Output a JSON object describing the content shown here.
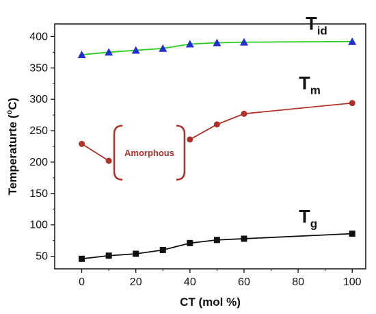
{
  "chart_data": {
    "type": "line",
    "xlabel": "CT (mol %)",
    "ylabel_main": "Temperaturte (",
    "ylabel_sup": "o",
    "ylabel_end": "C)",
    "xlim": [
      -10,
      105
    ],
    "ylim": [
      30,
      420
    ],
    "x_ticks": [
      0,
      20,
      40,
      60,
      80,
      100
    ],
    "y_ticks": [
      50,
      100,
      150,
      200,
      250,
      300,
      350,
      400
    ],
    "grid": false,
    "series": [
      {
        "key": "Tid",
        "label_main": "T",
        "label_sub": "id",
        "color": "#2ecc1f",
        "marker": "triangle",
        "marker_color": "#1f2fd4",
        "x": [
          0,
          10,
          20,
          30,
          40,
          50,
          60,
          100
        ],
        "y": [
          371,
          375,
          378,
          381,
          388,
          390,
          391,
          392
        ]
      },
      {
        "key": "Tm",
        "label_main": "T",
        "label_sub": "m",
        "color": "#b0302a",
        "marker": "circle",
        "marker_color": "#b0302a",
        "segments": [
          {
            "x": [
              0,
              10
            ],
            "y": [
              229,
              202
            ]
          },
          {
            "x": [
              40,
              50,
              60,
              100
            ],
            "y": [
              236,
              260,
              277,
              294
            ]
          }
        ]
      },
      {
        "key": "Tg",
        "label_main": "T",
        "label_sub": "g",
        "color": "#111111",
        "marker": "square",
        "marker_color": "#111111",
        "x": [
          0,
          10,
          20,
          30,
          40,
          50,
          60,
          100
        ],
        "y": [
          46,
          51,
          54,
          60,
          71,
          76,
          78,
          86
        ]
      }
    ],
    "annotation": {
      "text": "Amorphous",
      "color": "#b0302a",
      "x_range": [
        12,
        38
      ],
      "y_range": [
        172,
        258
      ]
    }
  }
}
